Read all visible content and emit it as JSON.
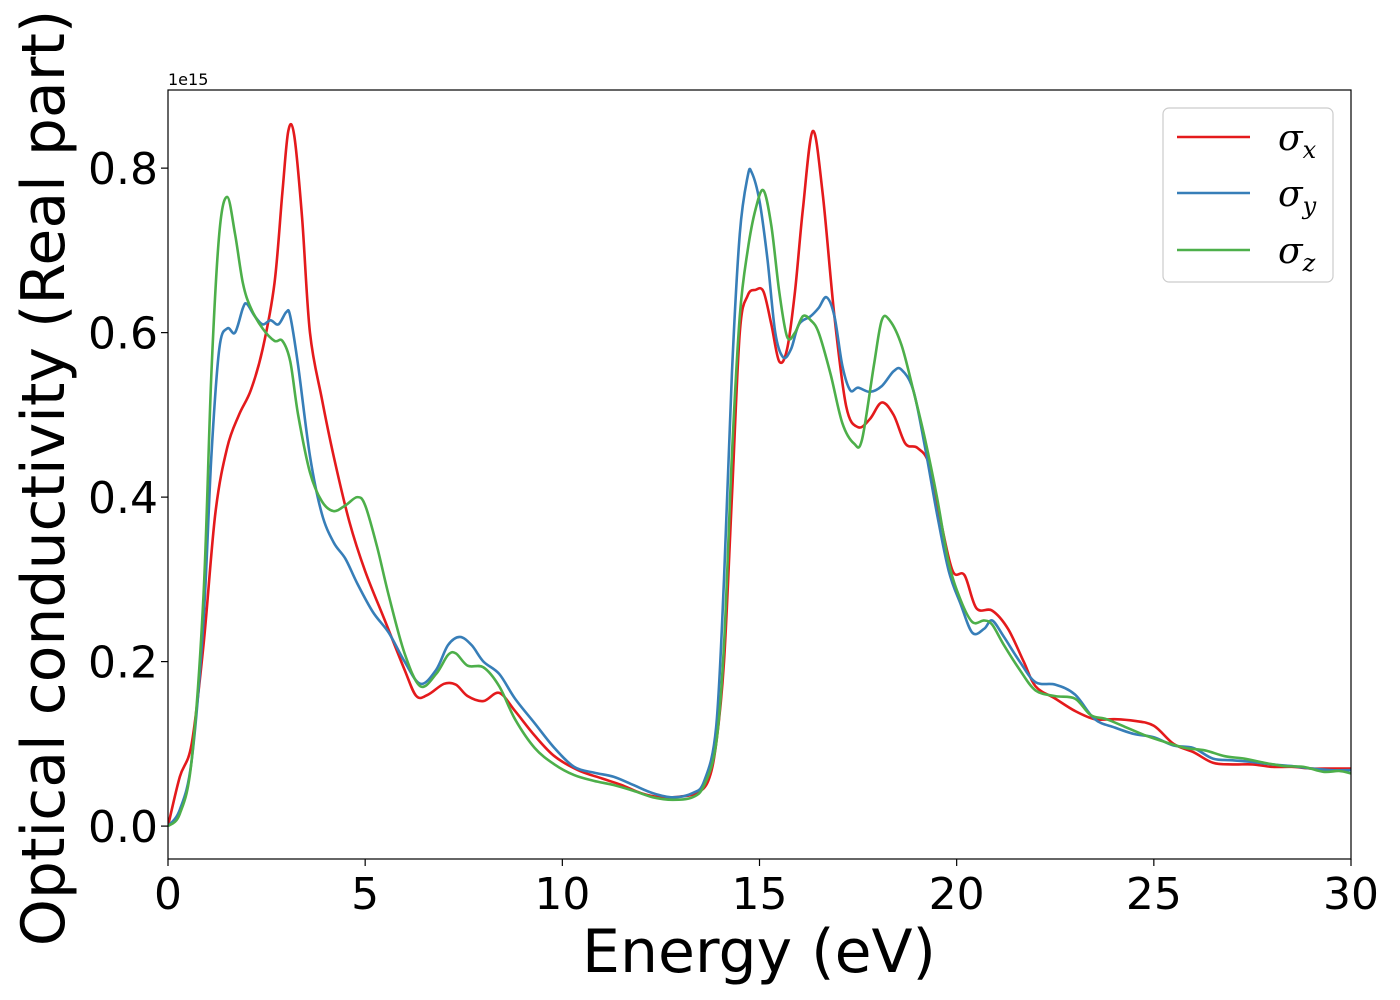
{
  "chart_data": {
    "type": "line",
    "xlabel": "Energy (eV)",
    "ylabel": "Optical conductivity (Real part)",
    "y_offset_label": "1e15",
    "xlim": [
      0,
      30
    ],
    "ylim": [
      -0.04,
      0.895
    ],
    "xticks": [
      0,
      5,
      10,
      15,
      20,
      25,
      30
    ],
    "xtick_labels": [
      "0",
      "5",
      "10",
      "15",
      "20",
      "25",
      "30"
    ],
    "yticks": [
      0.0,
      0.2,
      0.4,
      0.6,
      0.8
    ],
    "ytick_labels": [
      "0.0",
      "0.2",
      "0.4",
      "0.6",
      "0.8"
    ],
    "grid": false,
    "legend_position": "top-right",
    "series": [
      {
        "name": "σ",
        "subscript": "x",
        "color": "#e41a1c",
        "points": [
          [
            0,
            0.0
          ],
          [
            0.3,
            0.06
          ],
          [
            0.6,
            0.1
          ],
          [
            0.9,
            0.22
          ],
          [
            1.2,
            0.38
          ],
          [
            1.5,
            0.46
          ],
          [
            1.8,
            0.5
          ],
          [
            2.1,
            0.53
          ],
          [
            2.4,
            0.58
          ],
          [
            2.7,
            0.66
          ],
          [
            2.9,
            0.77
          ],
          [
            3.05,
            0.845
          ],
          [
            3.2,
            0.84
          ],
          [
            3.4,
            0.74
          ],
          [
            3.6,
            0.6
          ],
          [
            3.9,
            0.52
          ],
          [
            4.2,
            0.45
          ],
          [
            4.6,
            0.37
          ],
          [
            5.0,
            0.31
          ],
          [
            5.5,
            0.25
          ],
          [
            6.0,
            0.19
          ],
          [
            6.3,
            0.158
          ],
          [
            6.6,
            0.16
          ],
          [
            7.0,
            0.173
          ],
          [
            7.3,
            0.172
          ],
          [
            7.6,
            0.158
          ],
          [
            8.0,
            0.152
          ],
          [
            8.4,
            0.162
          ],
          [
            8.8,
            0.14
          ],
          [
            9.3,
            0.11
          ],
          [
            9.8,
            0.085
          ],
          [
            10.4,
            0.068
          ],
          [
            11.0,
            0.058
          ],
          [
            11.5,
            0.05
          ],
          [
            12.0,
            0.04
          ],
          [
            12.5,
            0.035
          ],
          [
            13.0,
            0.036
          ],
          [
            13.4,
            0.04
          ],
          [
            13.7,
            0.055
          ],
          [
            13.9,
            0.1
          ],
          [
            14.1,
            0.2
          ],
          [
            14.3,
            0.4
          ],
          [
            14.5,
            0.6
          ],
          [
            14.7,
            0.645
          ],
          [
            14.9,
            0.652
          ],
          [
            15.1,
            0.65
          ],
          [
            15.3,
            0.61
          ],
          [
            15.5,
            0.565
          ],
          [
            15.7,
            0.58
          ],
          [
            15.9,
            0.65
          ],
          [
            16.1,
            0.75
          ],
          [
            16.35,
            0.845
          ],
          [
            16.6,
            0.77
          ],
          [
            16.9,
            0.62
          ],
          [
            17.2,
            0.51
          ],
          [
            17.5,
            0.485
          ],
          [
            17.8,
            0.495
          ],
          [
            18.1,
            0.515
          ],
          [
            18.4,
            0.5
          ],
          [
            18.7,
            0.465
          ],
          [
            19.0,
            0.46
          ],
          [
            19.3,
            0.44
          ],
          [
            19.6,
            0.37
          ],
          [
            19.9,
            0.31
          ],
          [
            20.2,
            0.305
          ],
          [
            20.5,
            0.265
          ],
          [
            20.9,
            0.262
          ],
          [
            21.3,
            0.24
          ],
          [
            21.7,
            0.2
          ],
          [
            22.0,
            0.17
          ],
          [
            22.5,
            0.155
          ],
          [
            23.0,
            0.14
          ],
          [
            23.5,
            0.13
          ],
          [
            24.0,
            0.13
          ],
          [
            24.5,
            0.128
          ],
          [
            25.0,
            0.122
          ],
          [
            25.5,
            0.1
          ],
          [
            26.0,
            0.09
          ],
          [
            26.5,
            0.077
          ],
          [
            27.0,
            0.075
          ],
          [
            27.5,
            0.075
          ],
          [
            28.0,
            0.072
          ],
          [
            28.5,
            0.072
          ],
          [
            29.0,
            0.07
          ],
          [
            29.5,
            0.07
          ],
          [
            30.0,
            0.07
          ]
        ]
      },
      {
        "name": "σ",
        "subscript": "y",
        "color": "#377eb8",
        "points": [
          [
            0,
            0.0
          ],
          [
            0.3,
            0.02
          ],
          [
            0.6,
            0.08
          ],
          [
            0.9,
            0.25
          ],
          [
            1.1,
            0.45
          ],
          [
            1.3,
            0.58
          ],
          [
            1.5,
            0.605
          ],
          [
            1.7,
            0.6
          ],
          [
            1.9,
            0.63
          ],
          [
            2.0,
            0.635
          ],
          [
            2.2,
            0.62
          ],
          [
            2.4,
            0.61
          ],
          [
            2.6,
            0.615
          ],
          [
            2.8,
            0.61
          ],
          [
            3.0,
            0.625
          ],
          [
            3.1,
            0.62
          ],
          [
            3.3,
            0.56
          ],
          [
            3.6,
            0.45
          ],
          [
            3.9,
            0.38
          ],
          [
            4.2,
            0.345
          ],
          [
            4.5,
            0.325
          ],
          [
            4.8,
            0.295
          ],
          [
            5.2,
            0.26
          ],
          [
            5.6,
            0.235
          ],
          [
            6.0,
            0.2
          ],
          [
            6.4,
            0.173
          ],
          [
            6.8,
            0.19
          ],
          [
            7.1,
            0.22
          ],
          [
            7.4,
            0.23
          ],
          [
            7.7,
            0.22
          ],
          [
            8.0,
            0.2
          ],
          [
            8.4,
            0.185
          ],
          [
            8.8,
            0.155
          ],
          [
            9.3,
            0.125
          ],
          [
            9.8,
            0.095
          ],
          [
            10.3,
            0.072
          ],
          [
            10.8,
            0.065
          ],
          [
            11.3,
            0.06
          ],
          [
            11.8,
            0.05
          ],
          [
            12.3,
            0.04
          ],
          [
            12.8,
            0.035
          ],
          [
            13.3,
            0.04
          ],
          [
            13.6,
            0.055
          ],
          [
            13.9,
            0.12
          ],
          [
            14.1,
            0.3
          ],
          [
            14.3,
            0.55
          ],
          [
            14.5,
            0.72
          ],
          [
            14.7,
            0.79
          ],
          [
            14.8,
            0.795
          ],
          [
            15.0,
            0.76
          ],
          [
            15.2,
            0.69
          ],
          [
            15.4,
            0.6
          ],
          [
            15.6,
            0.57
          ],
          [
            15.8,
            0.58
          ],
          [
            16.0,
            0.61
          ],
          [
            16.3,
            0.62
          ],
          [
            16.5,
            0.63
          ],
          [
            16.7,
            0.643
          ],
          [
            16.9,
            0.62
          ],
          [
            17.1,
            0.56
          ],
          [
            17.3,
            0.53
          ],
          [
            17.5,
            0.533
          ],
          [
            17.8,
            0.528
          ],
          [
            18.1,
            0.535
          ],
          [
            18.4,
            0.553
          ],
          [
            18.6,
            0.555
          ],
          [
            18.9,
            0.53
          ],
          [
            19.2,
            0.46
          ],
          [
            19.5,
            0.38
          ],
          [
            19.8,
            0.31
          ],
          [
            20.1,
            0.27
          ],
          [
            20.4,
            0.235
          ],
          [
            20.7,
            0.24
          ],
          [
            20.9,
            0.25
          ],
          [
            21.2,
            0.23
          ],
          [
            21.6,
            0.2
          ],
          [
            22.0,
            0.175
          ],
          [
            22.5,
            0.172
          ],
          [
            23.0,
            0.16
          ],
          [
            23.5,
            0.13
          ],
          [
            24.0,
            0.12
          ],
          [
            24.5,
            0.112
          ],
          [
            25.0,
            0.108
          ],
          [
            25.5,
            0.098
          ],
          [
            26.0,
            0.095
          ],
          [
            26.5,
            0.082
          ],
          [
            27.0,
            0.08
          ],
          [
            27.5,
            0.078
          ],
          [
            28.0,
            0.075
          ],
          [
            28.5,
            0.073
          ],
          [
            29.0,
            0.07
          ],
          [
            29.5,
            0.068
          ],
          [
            30.0,
            0.068
          ]
        ]
      },
      {
        "name": "σ",
        "subscript": "z",
        "color": "#4daf4a",
        "points": [
          [
            0,
            0.0
          ],
          [
            0.3,
            0.015
          ],
          [
            0.6,
            0.08
          ],
          [
            0.9,
            0.28
          ],
          [
            1.1,
            0.55
          ],
          [
            1.3,
            0.72
          ],
          [
            1.5,
            0.765
          ],
          [
            1.7,
            0.72
          ],
          [
            1.9,
            0.66
          ],
          [
            2.1,
            0.63
          ],
          [
            2.4,
            0.605
          ],
          [
            2.7,
            0.59
          ],
          [
            2.9,
            0.59
          ],
          [
            3.1,
            0.565
          ],
          [
            3.3,
            0.5
          ],
          [
            3.6,
            0.43
          ],
          [
            3.9,
            0.395
          ],
          [
            4.2,
            0.383
          ],
          [
            4.5,
            0.39
          ],
          [
            4.8,
            0.4
          ],
          [
            5.0,
            0.39
          ],
          [
            5.3,
            0.34
          ],
          [
            5.6,
            0.28
          ],
          [
            6.0,
            0.21
          ],
          [
            6.4,
            0.17
          ],
          [
            6.8,
            0.185
          ],
          [
            7.1,
            0.208
          ],
          [
            7.3,
            0.21
          ],
          [
            7.6,
            0.195
          ],
          [
            8.0,
            0.193
          ],
          [
            8.4,
            0.17
          ],
          [
            8.8,
            0.13
          ],
          [
            9.3,
            0.095
          ],
          [
            9.8,
            0.075
          ],
          [
            10.3,
            0.062
          ],
          [
            10.8,
            0.055
          ],
          [
            11.3,
            0.05
          ],
          [
            11.8,
            0.043
          ],
          [
            12.3,
            0.035
          ],
          [
            12.8,
            0.032
          ],
          [
            13.3,
            0.035
          ],
          [
            13.6,
            0.05
          ],
          [
            13.9,
            0.1
          ],
          [
            14.1,
            0.22
          ],
          [
            14.3,
            0.45
          ],
          [
            14.5,
            0.62
          ],
          [
            14.7,
            0.7
          ],
          [
            14.9,
            0.75
          ],
          [
            15.1,
            0.773
          ],
          [
            15.3,
            0.73
          ],
          [
            15.5,
            0.65
          ],
          [
            15.7,
            0.595
          ],
          [
            15.9,
            0.6
          ],
          [
            16.1,
            0.62
          ],
          [
            16.3,
            0.615
          ],
          [
            16.5,
            0.6
          ],
          [
            16.8,
            0.55
          ],
          [
            17.1,
            0.49
          ],
          [
            17.4,
            0.465
          ],
          [
            17.6,
            0.47
          ],
          [
            17.9,
            0.56
          ],
          [
            18.1,
            0.615
          ],
          [
            18.3,
            0.615
          ],
          [
            18.6,
            0.585
          ],
          [
            18.9,
            0.53
          ],
          [
            19.2,
            0.47
          ],
          [
            19.5,
            0.4
          ],
          [
            19.8,
            0.32
          ],
          [
            20.1,
            0.275
          ],
          [
            20.4,
            0.248
          ],
          [
            20.7,
            0.25
          ],
          [
            20.9,
            0.245
          ],
          [
            21.2,
            0.22
          ],
          [
            21.6,
            0.19
          ],
          [
            22.0,
            0.165
          ],
          [
            22.5,
            0.158
          ],
          [
            23.0,
            0.155
          ],
          [
            23.4,
            0.135
          ],
          [
            23.8,
            0.13
          ],
          [
            24.3,
            0.12
          ],
          [
            24.8,
            0.11
          ],
          [
            25.3,
            0.102
          ],
          [
            25.8,
            0.095
          ],
          [
            26.3,
            0.092
          ],
          [
            26.8,
            0.085
          ],
          [
            27.3,
            0.082
          ],
          [
            27.8,
            0.077
          ],
          [
            28.3,
            0.073
          ],
          [
            28.8,
            0.072
          ],
          [
            29.3,
            0.066
          ],
          [
            29.7,
            0.067
          ],
          [
            30.0,
            0.064
          ]
        ]
      }
    ]
  }
}
